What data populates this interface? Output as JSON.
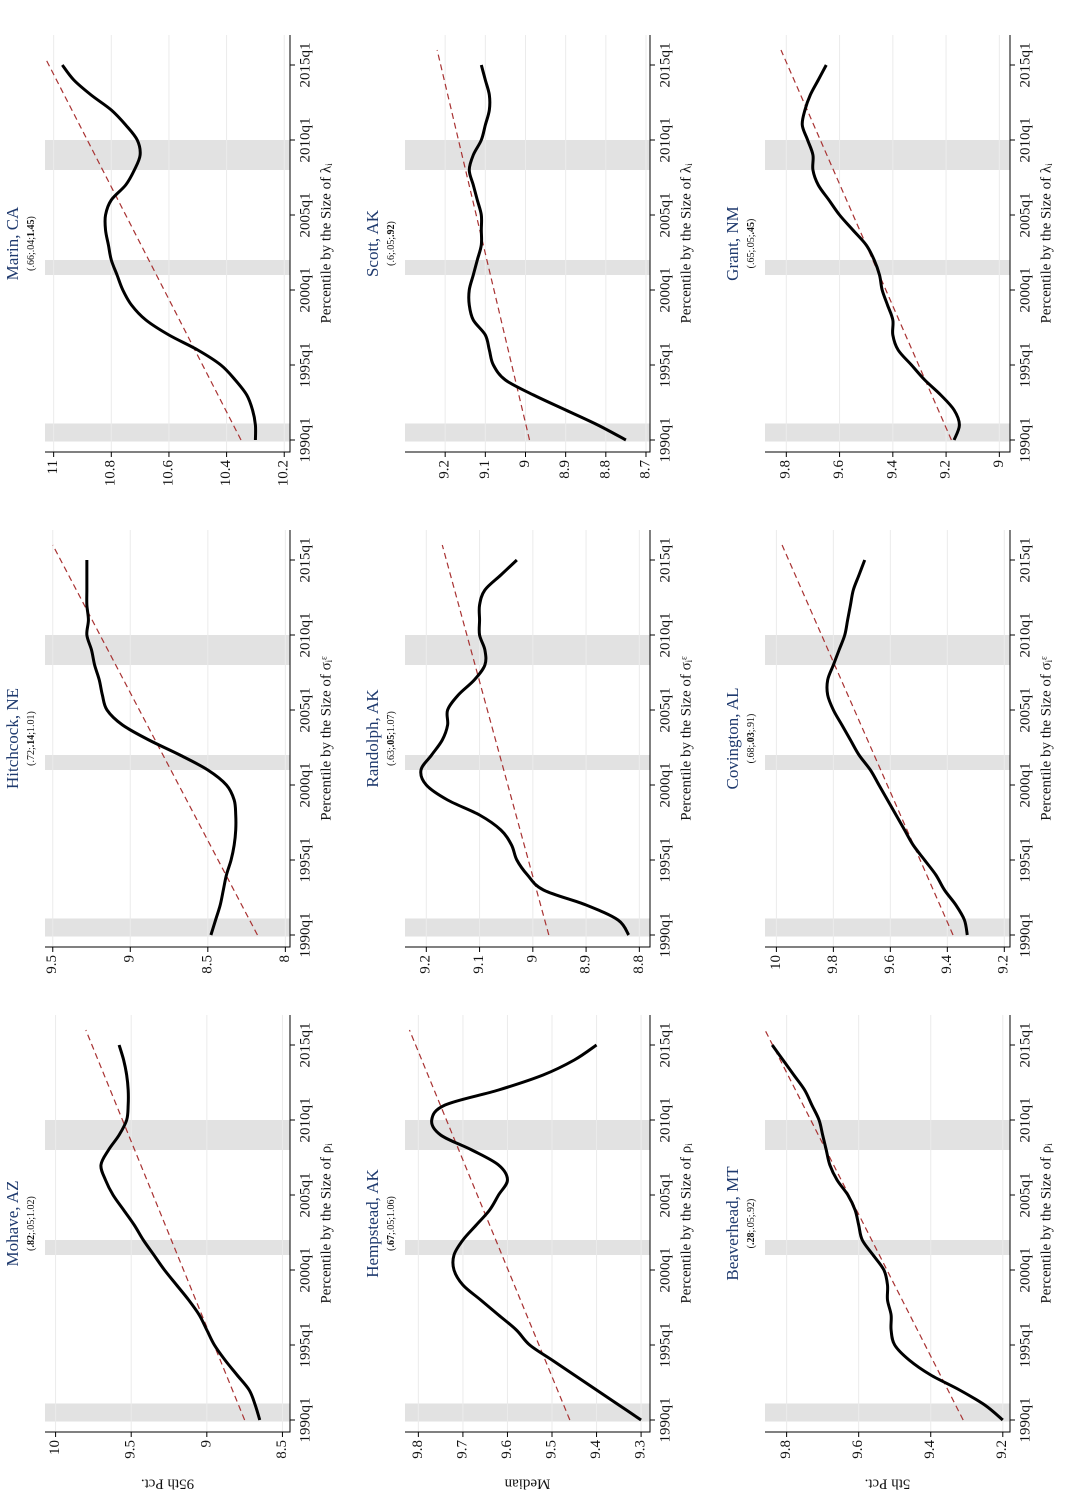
{
  "chart_data": [
    {
      "type": "line",
      "title": "Mohave, AZ",
      "subtitle_parts": [
        "(",
        ".82",
        ";.05;1.02)"
      ],
      "xlabel": "Percentile by the Size of ρᵢ",
      "ylabel": "95th Pct.",
      "x": [
        1990,
        1991,
        1992,
        1993,
        1994,
        1995,
        1996,
        1997,
        1998,
        1999,
        2000,
        2001,
        2002,
        2003,
        2004,
        2005,
        2006,
        2007,
        2008,
        2009,
        2010,
        2011,
        2012,
        2013,
        2014,
        2015
      ],
      "series": [
        {
          "color": "#000000",
          "values": [
            8.65,
            8.68,
            8.72,
            8.8,
            8.88,
            8.95,
            9.0,
            9.05,
            9.12,
            9.2,
            9.28,
            9.35,
            9.42,
            9.48,
            9.55,
            9.62,
            9.67,
            9.7,
            9.65,
            9.58,
            9.53,
            9.52,
            9.52,
            9.53,
            9.55,
            9.58
          ]
        }
      ],
      "trend": {
        "color": "#a83232",
        "x": [
          1990,
          2016
        ],
        "values": [
          8.75,
          9.8
        ]
      },
      "bands": [
        [
          1989.9,
          1991.1
        ],
        [
          2001,
          2002
        ],
        [
          2008,
          2010
        ]
      ],
      "xlim": [
        1989.2,
        2017
      ],
      "xticks": [
        {
          "value": 1990,
          "label": "1990q1"
        },
        {
          "value": 1995,
          "label": "1995q1"
        },
        {
          "value": 2000,
          "label": "2000q1"
        },
        {
          "value": 2005,
          "label": "2005q1"
        },
        {
          "value": 2010,
          "label": "2010q1"
        },
        {
          "value": 2015,
          "label": "2015q1"
        }
      ],
      "ylim": [
        8.45,
        10.07
      ],
      "yticks": [
        8.5,
        9,
        9.5,
        10
      ],
      "grid": true
    },
    {
      "type": "line",
      "title": "Hitchcock, NE",
      "subtitle_parts": [
        "(.72;",
        ".14",
        ";1.01)"
      ],
      "xlabel": "Percentile by the Size of σᵢᵋ",
      "x": [
        1990,
        1991,
        1992,
        1993,
        1994,
        1995,
        1996,
        1997,
        1998,
        1999,
        2000,
        2001,
        2002,
        2003,
        2004,
        2005,
        2006,
        2007,
        2008,
        2009,
        2010,
        2011,
        2012,
        2013,
        2014,
        2015
      ],
      "series": [
        {
          "color": "#000000",
          "values": [
            8.48,
            8.45,
            8.42,
            8.4,
            8.38,
            8.35,
            8.33,
            8.32,
            8.32,
            8.33,
            8.38,
            8.5,
            8.68,
            8.88,
            9.05,
            9.15,
            9.18,
            9.2,
            9.23,
            9.25,
            9.28,
            9.27,
            9.28,
            9.28,
            9.28,
            9.28
          ]
        }
      ],
      "trend": {
        "color": "#a83232",
        "x": [
          1990,
          2016
        ],
        "values": [
          8.18,
          9.5
        ]
      },
      "bands": [
        [
          1989.9,
          1991.1
        ],
        [
          2001,
          2002
        ],
        [
          2008,
          2010
        ]
      ],
      "xlim": [
        1989.2,
        2017
      ],
      "xticks": [
        {
          "value": 1990,
          "label": "1990q1"
        },
        {
          "value": 1995,
          "label": "1995q1"
        },
        {
          "value": 2000,
          "label": "2000q1"
        },
        {
          "value": 2005,
          "label": "2005q1"
        },
        {
          "value": 2010,
          "label": "2010q1"
        },
        {
          "value": 2015,
          "label": "2015q1"
        }
      ],
      "ylim": [
        7.97,
        9.55
      ],
      "yticks": [
        8,
        8.5,
        9,
        9.5
      ],
      "grid": true
    },
    {
      "type": "line",
      "title": "Marin, CA",
      "subtitle_parts": [
        "(.66;.04;",
        "1.45",
        ")"
      ],
      "xlabel": "Percentile by the Size of λᵢ",
      "x": [
        1990,
        1991,
        1992,
        1993,
        1994,
        1995,
        1996,
        1997,
        1998,
        1999,
        2000,
        2001,
        2002,
        2003,
        2004,
        2005,
        2006,
        2007,
        2008,
        2009,
        2010,
        2011,
        2012,
        2013,
        2014,
        2015
      ],
      "series": [
        {
          "color": "#000000",
          "values": [
            10.3,
            10.3,
            10.31,
            10.33,
            10.37,
            10.42,
            10.5,
            10.6,
            10.68,
            10.73,
            10.76,
            10.78,
            10.8,
            10.81,
            10.82,
            10.82,
            10.8,
            10.75,
            10.72,
            10.7,
            10.71,
            10.75,
            10.8,
            10.87,
            10.93,
            10.97
          ]
        }
      ],
      "trend": {
        "color": "#a83232",
        "x": [
          1990,
          2015.5
        ],
        "values": [
          10.35,
          11.03
        ]
      },
      "bands": [
        [
          1989.9,
          1991.1
        ],
        [
          2001,
          2002
        ],
        [
          2008,
          2010
        ]
      ],
      "xlim": [
        1989.2,
        2017
      ],
      "xticks": [
        {
          "value": 1990,
          "label": "1990q1"
        },
        {
          "value": 1995,
          "label": "1995q1"
        },
        {
          "value": 2000,
          "label": "2000q1"
        },
        {
          "value": 2005,
          "label": "2005q1"
        },
        {
          "value": 2010,
          "label": "2010q1"
        },
        {
          "value": 2015,
          "label": "2015q1"
        }
      ],
      "ylim": [
        10.18,
        11.03
      ],
      "yticks": [
        10.2,
        10.4,
        10.6,
        10.8,
        11
      ],
      "grid": true
    },
    {
      "type": "line",
      "title": "Hempstead, AK",
      "subtitle_parts": [
        "(",
        ".67",
        ";.05;1.06)"
      ],
      "xlabel": "Percentile by the Size of ρᵢ",
      "ylabel": "Median",
      "x": [
        1990,
        1991,
        1992,
        1993,
        1994,
        1995,
        1996,
        1997,
        1998,
        1999,
        2000,
        2001,
        2002,
        2003,
        2004,
        2005,
        2006,
        2007,
        2008,
        2009,
        2010,
        2011,
        2012,
        2013,
        2014,
        2015
      ],
      "series": [
        {
          "color": "#000000",
          "values": [
            9.3,
            9.35,
            9.4,
            9.45,
            9.5,
            9.55,
            9.58,
            9.62,
            9.66,
            9.7,
            9.72,
            9.72,
            9.7,
            9.67,
            9.64,
            9.62,
            9.6,
            9.62,
            9.68,
            9.75,
            9.77,
            9.74,
            9.62,
            9.52,
            9.45,
            9.4
          ]
        }
      ],
      "trend": {
        "color": "#a83232",
        "x": [
          1990,
          2016
        ],
        "values": [
          9.46,
          9.82
        ]
      },
      "bands": [
        [
          1989.9,
          1991.1
        ],
        [
          2001,
          2002
        ],
        [
          2008,
          2010
        ]
      ],
      "xlim": [
        1989.2,
        2017
      ],
      "xticks": [
        {
          "value": 1990,
          "label": "1990q1"
        },
        {
          "value": 1995,
          "label": "1995q1"
        },
        {
          "value": 2000,
          "label": "2000q1"
        },
        {
          "value": 2005,
          "label": "2005q1"
        },
        {
          "value": 2010,
          "label": "2010q1"
        },
        {
          "value": 2015,
          "label": "2015q1"
        }
      ],
      "ylim": [
        9.28,
        9.83
      ],
      "yticks": [
        9.3,
        9.4,
        9.5,
        9.6,
        9.7,
        9.8
      ],
      "grid": true
    },
    {
      "type": "line",
      "title": "Randolph, AK",
      "subtitle_parts": [
        "(.63;",
        ".05",
        ";1.07)"
      ],
      "xlabel": "Percentile by the Size of σᵢᵋ",
      "x": [
        1990,
        1991,
        1992,
        1993,
        1994,
        1995,
        1996,
        1997,
        1998,
        1999,
        2000,
        2001,
        2002,
        2003,
        2004,
        2005,
        2006,
        2007,
        2008,
        2009,
        2010,
        2011,
        2012,
        2013,
        2014,
        2015
      ],
      "series": [
        {
          "color": "#000000",
          "values": [
            8.82,
            8.84,
            8.9,
            8.98,
            9.01,
            9.03,
            9.04,
            9.06,
            9.1,
            9.16,
            9.2,
            9.21,
            9.19,
            9.17,
            9.16,
            9.16,
            9.14,
            9.11,
            9.09,
            9.09,
            9.1,
            9.1,
            9.1,
            9.09,
            9.06,
            9.03
          ]
        }
      ],
      "trend": {
        "color": "#a83232",
        "x": [
          1990,
          2016
        ],
        "values": [
          8.97,
          9.17
        ]
      },
      "bands": [
        [
          1989.9,
          1991.1
        ],
        [
          2001,
          2002
        ],
        [
          2008,
          2010
        ]
      ],
      "xlim": [
        1989.2,
        2017
      ],
      "xticks": [
        {
          "value": 1990,
          "label": "1990q1"
        },
        {
          "value": 1995,
          "label": "1995q1"
        },
        {
          "value": 2000,
          "label": "2000q1"
        },
        {
          "value": 2005,
          "label": "2005q1"
        },
        {
          "value": 2010,
          "label": "2010q1"
        },
        {
          "value": 2015,
          "label": "2015q1"
        }
      ],
      "ylim": [
        8.78,
        9.24
      ],
      "yticks": [
        8.8,
        8.9,
        9,
        9.1,
        9.2
      ],
      "grid": true
    },
    {
      "type": "line",
      "title": "Scott, AK",
      "subtitle_parts": [
        "(.6;.05;",
        ".92",
        ")"
      ],
      "xlabel": "Percentile by the Size of λᵢ",
      "x": [
        1990,
        1991,
        1992,
        1993,
        1994,
        1995,
        1996,
        1997,
        1998,
        1999,
        2000,
        2001,
        2002,
        2003,
        2004,
        2005,
        2006,
        2007,
        2008,
        2009,
        2010,
        2011,
        2012,
        2013,
        2014,
        2015
      ],
      "series": [
        {
          "color": "#000000",
          "values": [
            8.75,
            8.82,
            8.9,
            8.98,
            9.05,
            9.08,
            9.09,
            9.1,
            9.13,
            9.14,
            9.14,
            9.13,
            9.12,
            9.11,
            9.11,
            9.11,
            9.12,
            9.13,
            9.14,
            9.13,
            9.11,
            9.1,
            9.09,
            9.09,
            9.1,
            9.11
          ]
        }
      ],
      "trend": {
        "color": "#a83232",
        "x": [
          1990,
          2016
        ],
        "values": [
          8.99,
          9.22
        ]
      },
      "bands": [
        [
          1989.9,
          1991.1
        ],
        [
          2001,
          2002
        ],
        [
          2008,
          2010
        ]
      ],
      "xlim": [
        1989.2,
        2017
      ],
      "xticks": [
        {
          "value": 1990,
          "label": "1990q1"
        },
        {
          "value": 1995,
          "label": "1995q1"
        },
        {
          "value": 2000,
          "label": "2000q1"
        },
        {
          "value": 2005,
          "label": "2005q1"
        },
        {
          "value": 2010,
          "label": "2010q1"
        },
        {
          "value": 2015,
          "label": "2015q1"
        }
      ],
      "ylim": [
        8.69,
        9.3
      ],
      "yticks": [
        8.7,
        8.8,
        8.9,
        9,
        9.1,
        9.2
      ],
      "grid": true
    },
    {
      "type": "line",
      "title": "Beaverhead, MT",
      "subtitle_parts": [
        "(",
        ".28",
        ";.05;.92)"
      ],
      "xlabel": "Percentile by the Size of ρᵢ",
      "ylabel": "5th Pct.",
      "x": [
        1990,
        1991,
        1992,
        1993,
        1994,
        1995,
        1996,
        1997,
        1998,
        1999,
        2000,
        2001,
        2002,
        2003,
        2004,
        2005,
        2006,
        2007,
        2008,
        2009,
        2010,
        2011,
        2012,
        2013,
        2014,
        2015
      ],
      "series": [
        {
          "color": "#000000",
          "values": [
            9.2,
            9.25,
            9.32,
            9.4,
            9.46,
            9.5,
            9.51,
            9.51,
            9.52,
            9.52,
            9.53,
            9.56,
            9.59,
            9.6,
            9.61,
            9.63,
            9.66,
            9.68,
            9.69,
            9.7,
            9.71,
            9.73,
            9.75,
            9.78,
            9.81,
            9.84
          ]
        }
      ],
      "trend": {
        "color": "#a83232",
        "x": [
          1990,
          2016
        ],
        "values": [
          9.31,
          9.86
        ]
      },
      "bands": [
        [
          1989.9,
          1991.1
        ],
        [
          2001,
          2002
        ],
        [
          2008,
          2010
        ]
      ],
      "xlim": [
        1989.2,
        2017
      ],
      "xticks": [
        {
          "value": 1990,
          "label": "1990q1"
        },
        {
          "value": 1995,
          "label": "1995q1"
        },
        {
          "value": 2000,
          "label": "2000q1"
        },
        {
          "value": 2005,
          "label": "2005q1"
        },
        {
          "value": 2010,
          "label": "2010q1"
        },
        {
          "value": 2015,
          "label": "2015q1"
        }
      ],
      "ylim": [
        9.18,
        9.86
      ],
      "yticks": [
        9.2,
        9.4,
        9.6,
        9.8
      ],
      "grid": true
    },
    {
      "type": "line",
      "title": "Covington, AL",
      "subtitle_parts": [
        "(.68;",
        ".03",
        ";.91)"
      ],
      "xlabel": "Percentile by the Size of σᵢᵋ",
      "x": [
        1990,
        1991,
        1992,
        1993,
        1994,
        1995,
        1996,
        1997,
        1998,
        1999,
        2000,
        2001,
        2002,
        2003,
        2004,
        2005,
        2006,
        2007,
        2008,
        2009,
        2010,
        2011,
        2012,
        2013,
        2014,
        2015
      ],
      "series": [
        {
          "color": "#000000",
          "values": [
            9.33,
            9.34,
            9.37,
            9.41,
            9.44,
            9.48,
            9.52,
            9.55,
            9.58,
            9.61,
            9.64,
            9.67,
            9.71,
            9.74,
            9.77,
            9.8,
            9.82,
            9.82,
            9.8,
            9.78,
            9.76,
            9.75,
            9.74,
            9.73,
            9.71,
            9.69
          ]
        }
      ],
      "trend": {
        "color": "#a83232",
        "x": [
          1990,
          2016
        ],
        "values": [
          9.38,
          9.98
        ]
      },
      "bands": [
        [
          1989.9,
          1991.1
        ],
        [
          2001,
          2002
        ],
        [
          2008,
          2010
        ]
      ],
      "xlim": [
        1989.2,
        2017
      ],
      "xticks": [
        {
          "value": 1990,
          "label": "1990q1"
        },
        {
          "value": 1995,
          "label": "1995q1"
        },
        {
          "value": 2000,
          "label": "2000q1"
        },
        {
          "value": 2005,
          "label": "2005q1"
        },
        {
          "value": 2010,
          "label": "2010q1"
        },
        {
          "value": 2015,
          "label": "2015q1"
        }
      ],
      "ylim": [
        9.18,
        10.04
      ],
      "yticks": [
        9.2,
        9.4,
        9.6,
        9.8,
        10
      ],
      "grid": true
    },
    {
      "type": "line",
      "title": "Grant, NM",
      "subtitle_parts": [
        "(.65;.05;",
        ".45",
        ")"
      ],
      "xlabel": "Percentile by the Size of λᵢ",
      "x": [
        1990,
        1991,
        1992,
        1993,
        1994,
        1995,
        1996,
        1997,
        1998,
        1999,
        2000,
        2001,
        2002,
        2003,
        2004,
        2005,
        2006,
        2007,
        2008,
        2009,
        2010,
        2011,
        2012,
        2013,
        2014,
        2015
      ],
      "series": [
        {
          "color": "#000000",
          "values": [
            9.17,
            9.15,
            9.17,
            9.22,
            9.28,
            9.33,
            9.38,
            9.4,
            9.4,
            9.42,
            9.44,
            9.45,
            9.47,
            9.5,
            9.55,
            9.6,
            9.64,
            9.68,
            9.7,
            9.7,
            9.72,
            9.74,
            9.73,
            9.71,
            9.68,
            9.65
          ]
        }
      ],
      "trend": {
        "color": "#a83232",
        "x": [
          1990,
          2016
        ],
        "values": [
          9.18,
          9.82
        ]
      },
      "bands": [
        [
          1989.9,
          1991.1
        ],
        [
          2001,
          2002
        ],
        [
          2008,
          2010
        ]
      ],
      "xlim": [
        1989.2,
        2017
      ],
      "xticks": [
        {
          "value": 1990,
          "label": "1990q1"
        },
        {
          "value": 1995,
          "label": "1995q1"
        },
        {
          "value": 2000,
          "label": "2000q1"
        },
        {
          "value": 2005,
          "label": "2005q1"
        },
        {
          "value": 2010,
          "label": "2010q1"
        },
        {
          "value": 2015,
          "label": "2015q1"
        }
      ],
      "ylim": [
        8.96,
        9.88
      ],
      "yticks": [
        9,
        9.2,
        9.4,
        9.6,
        9.8
      ],
      "grid": true
    }
  ]
}
